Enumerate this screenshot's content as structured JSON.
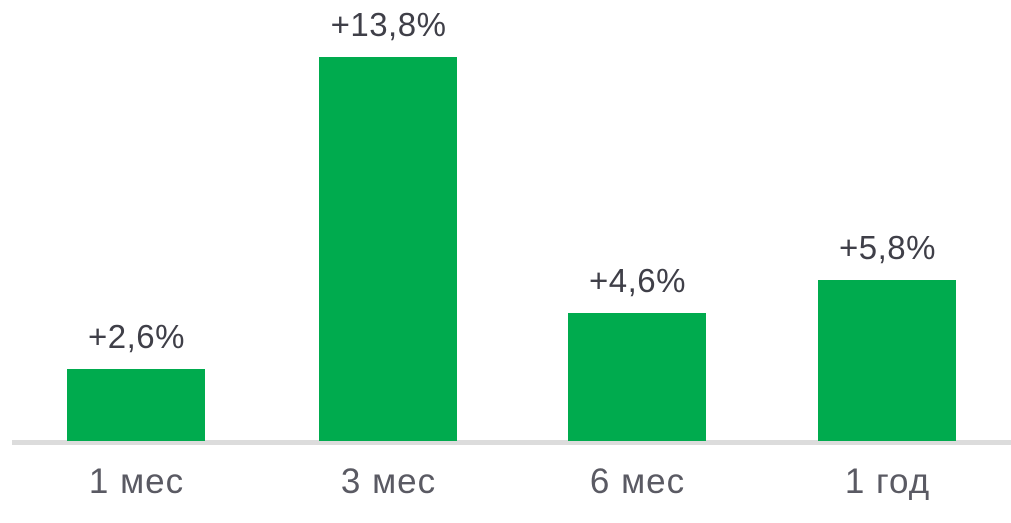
{
  "chart_data": {
    "type": "bar",
    "title": "",
    "xlabel": "",
    "ylabel": "",
    "categories": [
      "1 мес",
      "3 мес",
      "6 мес",
      "1 год"
    ],
    "values": [
      2.6,
      13.8,
      4.6,
      5.8
    ],
    "data_labels": [
      "+2,6%",
      "+13,8%",
      "+4,6%",
      "+5,8%"
    ],
    "ylim": [
      0,
      14.5
    ],
    "grid": false,
    "legend": false,
    "colors": {
      "bar": "#00AB4E",
      "value_label_text": "#3F3F48",
      "category_label_text": "#5A5A63",
      "axis_line": "#DCDCDC",
      "background": "#FFFFFF"
    }
  }
}
